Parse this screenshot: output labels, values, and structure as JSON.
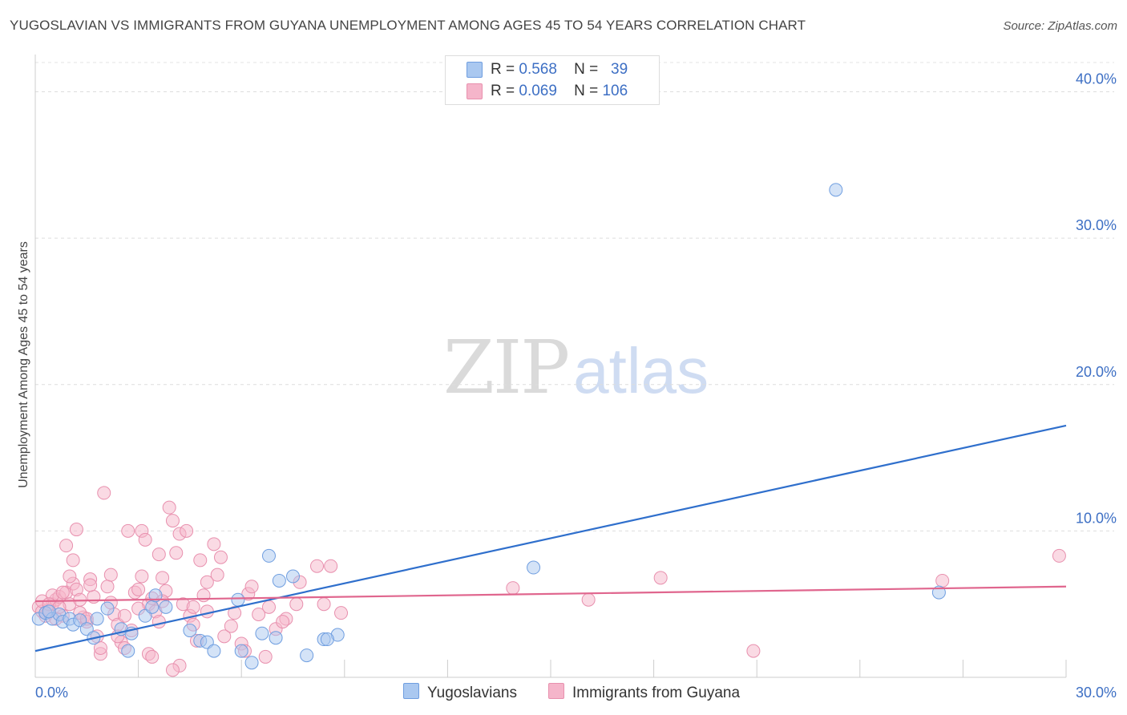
{
  "header": {
    "title": "YUGOSLAVIAN VS IMMIGRANTS FROM GUYANA UNEMPLOYMENT AMONG AGES 45 TO 54 YEARS CORRELATION CHART",
    "source": "Source: ZipAtlas.com"
  },
  "watermark": {
    "zip": "ZIP",
    "atlas": "atlas"
  },
  "legend": {
    "rows": [
      {
        "r_label": "R =",
        "r_value": "0.568",
        "n_label": "N =",
        "n_value": "39",
        "color": "#aac8f0"
      },
      {
        "r_label": "R =",
        "r_value": "0.069",
        "n_label": "N =",
        "n_value": "106",
        "color": "#f5b5ca"
      }
    ]
  },
  "chart_data": {
    "type": "scatter",
    "title": "YUGOSLAVIAN VS IMMIGRANTS FROM GUYANA UNEMPLOYMENT AMONG AGES 45 TO 54 YEARS CORRELATION CHART",
    "xlabel": "",
    "ylabel": "Unemployment Among Ages 45 to 54 years",
    "xlim": [
      0,
      30
    ],
    "ylim": [
      0,
      42
    ],
    "x_tick_labels": [
      "0.0%",
      "30.0%"
    ],
    "y_ticks": [
      10,
      20,
      30,
      40
    ],
    "y_tick_labels": [
      "10.0%",
      "20.0%",
      "30.0%",
      "40.0%"
    ],
    "grid": true,
    "legend_position": "top-center",
    "series": [
      {
        "name": "Yugoslavians",
        "color": "#aac8f0",
        "line_color": "#2f6fcc",
        "trend": [
          [
            0,
            1.8
          ],
          [
            30,
            17.2
          ]
        ],
        "points": [
          [
            0.1,
            4.0
          ],
          [
            0.3,
            4.4
          ],
          [
            0.5,
            4.0
          ],
          [
            0.7,
            4.3
          ],
          [
            0.8,
            3.8
          ],
          [
            1.0,
            4.0
          ],
          [
            1.1,
            3.6
          ],
          [
            1.3,
            3.9
          ],
          [
            1.5,
            3.3
          ],
          [
            1.7,
            2.7
          ],
          [
            2.1,
            4.7
          ],
          [
            2.5,
            3.3
          ],
          [
            2.7,
            1.8
          ],
          [
            3.2,
            4.2
          ],
          [
            3.4,
            4.8
          ],
          [
            3.5,
            5.6
          ],
          [
            3.8,
            4.8
          ],
          [
            4.5,
            3.2
          ],
          [
            4.8,
            2.5
          ],
          [
            5.0,
            2.4
          ],
          [
            5.2,
            1.8
          ],
          [
            5.9,
            5.3
          ],
          [
            6.0,
            1.8
          ],
          [
            6.3,
            1.0
          ],
          [
            6.6,
            3.0
          ],
          [
            6.8,
            8.3
          ],
          [
            7.0,
            2.7
          ],
          [
            7.1,
            6.6
          ],
          [
            7.5,
            6.9
          ],
          [
            7.9,
            1.5
          ],
          [
            8.4,
            2.6
          ],
          [
            8.8,
            2.9
          ],
          [
            8.5,
            2.6
          ],
          [
            14.5,
            7.5
          ],
          [
            23.3,
            33.3
          ],
          [
            26.3,
            5.8
          ],
          [
            2.8,
            3.0
          ],
          [
            1.8,
            4.0
          ],
          [
            0.4,
            4.5
          ]
        ]
      },
      {
        "name": "Immigrants from Guyana",
        "color": "#f5b5ca",
        "line_color": "#e0668e",
        "trend": [
          [
            0,
            5.2
          ],
          [
            30,
            6.2
          ]
        ],
        "points": [
          [
            0.1,
            4.8
          ],
          [
            0.2,
            4.5
          ],
          [
            0.3,
            4.2
          ],
          [
            0.4,
            4.6
          ],
          [
            0.5,
            5.0
          ],
          [
            0.6,
            5.3
          ],
          [
            0.7,
            5.5
          ],
          [
            0.8,
            4.2
          ],
          [
            0.9,
            5.8
          ],
          [
            1.0,
            5.0
          ],
          [
            1.1,
            6.4
          ],
          [
            1.2,
            6.0
          ],
          [
            1.3,
            5.3
          ],
          [
            1.4,
            4.1
          ],
          [
            1.5,
            3.8
          ],
          [
            1.6,
            6.7
          ],
          [
            1.7,
            5.5
          ],
          [
            1.8,
            2.8
          ],
          [
            1.9,
            1.6
          ],
          [
            2.0,
            12.6
          ],
          [
            2.1,
            6.2
          ],
          [
            2.2,
            5.1
          ],
          [
            2.3,
            4.3
          ],
          [
            2.4,
            3.6
          ],
          [
            2.5,
            2.4
          ],
          [
            2.6,
            2.0
          ],
          [
            2.7,
            10.0
          ],
          [
            2.8,
            3.2
          ],
          [
            2.9,
            5.8
          ],
          [
            3.0,
            6.0
          ],
          [
            3.1,
            10.0
          ],
          [
            3.2,
            9.4
          ],
          [
            3.3,
            5.0
          ],
          [
            3.4,
            5.4
          ],
          [
            3.5,
            4.5
          ],
          [
            3.6,
            3.8
          ],
          [
            3.7,
            6.8
          ],
          [
            3.8,
            5.9
          ],
          [
            3.9,
            11.6
          ],
          [
            4.0,
            10.7
          ],
          [
            4.1,
            8.5
          ],
          [
            4.2,
            9.8
          ],
          [
            4.3,
            5.0
          ],
          [
            4.4,
            10.0
          ],
          [
            4.5,
            4.2
          ],
          [
            4.6,
            3.6
          ],
          [
            4.7,
            2.5
          ],
          [
            4.8,
            8.0
          ],
          [
            4.9,
            5.6
          ],
          [
            5.0,
            4.5
          ],
          [
            5.2,
            9.1
          ],
          [
            5.4,
            8.2
          ],
          [
            5.5,
            2.8
          ],
          [
            5.7,
            3.5
          ],
          [
            5.8,
            4.4
          ],
          [
            6.0,
            2.3
          ],
          [
            6.1,
            1.8
          ],
          [
            6.2,
            5.7
          ],
          [
            6.5,
            4.3
          ],
          [
            6.7,
            1.4
          ],
          [
            6.8,
            4.8
          ],
          [
            7.0,
            3.3
          ],
          [
            7.3,
            4.0
          ],
          [
            7.6,
            5.0
          ],
          [
            7.7,
            6.5
          ],
          [
            8.2,
            7.6
          ],
          [
            8.4,
            5.0
          ],
          [
            8.6,
            7.6
          ],
          [
            8.9,
            4.4
          ],
          [
            1.1,
            8.0
          ],
          [
            1.2,
            10.1
          ],
          [
            0.9,
            9.0
          ],
          [
            13.9,
            6.1
          ],
          [
            16.1,
            5.3
          ],
          [
            18.2,
            6.8
          ],
          [
            20.9,
            1.8
          ],
          [
            26.4,
            6.6
          ],
          [
            29.8,
            8.3
          ],
          [
            0.3,
            4.4
          ],
          [
            0.6,
            4.0
          ],
          [
            1.3,
            4.4
          ],
          [
            2.2,
            7.0
          ],
          [
            3.3,
            1.6
          ],
          [
            3.6,
            8.4
          ],
          [
            4.2,
            0.8
          ],
          [
            5.0,
            6.5
          ],
          [
            0.5,
            5.6
          ],
          [
            0.8,
            5.8
          ],
          [
            1.5,
            4.0
          ],
          [
            1.9,
            2.0
          ],
          [
            2.6,
            4.2
          ],
          [
            3.1,
            6.9
          ],
          [
            3.4,
            1.4
          ],
          [
            4.0,
            0.5
          ],
          [
            4.6,
            4.8
          ],
          [
            5.3,
            7.0
          ],
          [
            6.3,
            6.2
          ],
          [
            7.2,
            3.8
          ],
          [
            0.2,
            5.2
          ],
          [
            0.4,
            5.0
          ],
          [
            0.7,
            4.8
          ],
          [
            1.0,
            6.9
          ],
          [
            1.6,
            6.3
          ],
          [
            2.4,
            2.8
          ],
          [
            3.0,
            4.7
          ],
          [
            3.7,
            5.2
          ]
        ]
      }
    ]
  },
  "bottom_legend": {
    "items": [
      {
        "label": "Yugoslavians",
        "color": "#aac8f0"
      },
      {
        "label": "Immigrants from Guyana",
        "color": "#f5b5ca"
      }
    ]
  }
}
